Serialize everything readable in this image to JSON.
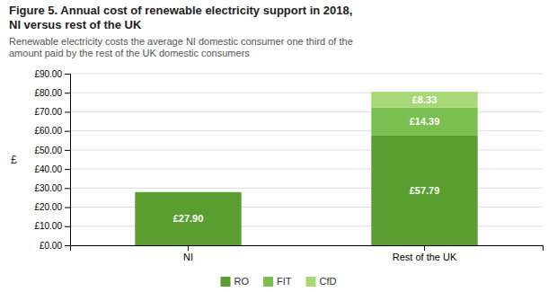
{
  "chart_data": {
    "type": "bar",
    "stacked": true,
    "title": "Figure 5. Annual cost of renewable electricity support in 2018,\nNI versus rest of the UK",
    "subtitle": "Renewable electricity costs the average NI domestic consumer one third of the\namount paid by the rest of the UK domestic consumers",
    "categories": [
      "NI",
      "Rest of the UK"
    ],
    "series": [
      {
        "name": "RO",
        "color": "#5a9e2f",
        "values": [
          27.9,
          57.79
        ],
        "value_labels": [
          "£27.90",
          "£57.79"
        ]
      },
      {
        "name": "FIT",
        "color": "#7bbf50",
        "values": [
          0.0,
          14.39
        ],
        "value_labels": [
          null,
          "£14.39"
        ]
      },
      {
        "name": "CfD",
        "color": "#a8d878",
        "values": [
          0.0,
          8.33
        ],
        "value_labels": [
          null,
          "£8.33"
        ]
      }
    ],
    "ylabel": "£",
    "ylim": [
      0,
      90
    ],
    "yticks": [
      {
        "value": 0,
        "label": "£0.00"
      },
      {
        "value": 10,
        "label": "£10.00"
      },
      {
        "value": 20,
        "label": "£20.00"
      },
      {
        "value": 30,
        "label": "£30.00"
      },
      {
        "value": 40,
        "label": "£40.00"
      },
      {
        "value": 50,
        "label": "£50.00"
      },
      {
        "value": 60,
        "label": "£60.00"
      },
      {
        "value": 70,
        "label": "£70.00"
      },
      {
        "value": 80,
        "label": "£80.00"
      },
      {
        "value": 90,
        "label": "£90.00"
      }
    ],
    "grid": true,
    "data_labels": true,
    "legend": "bottom"
  }
}
